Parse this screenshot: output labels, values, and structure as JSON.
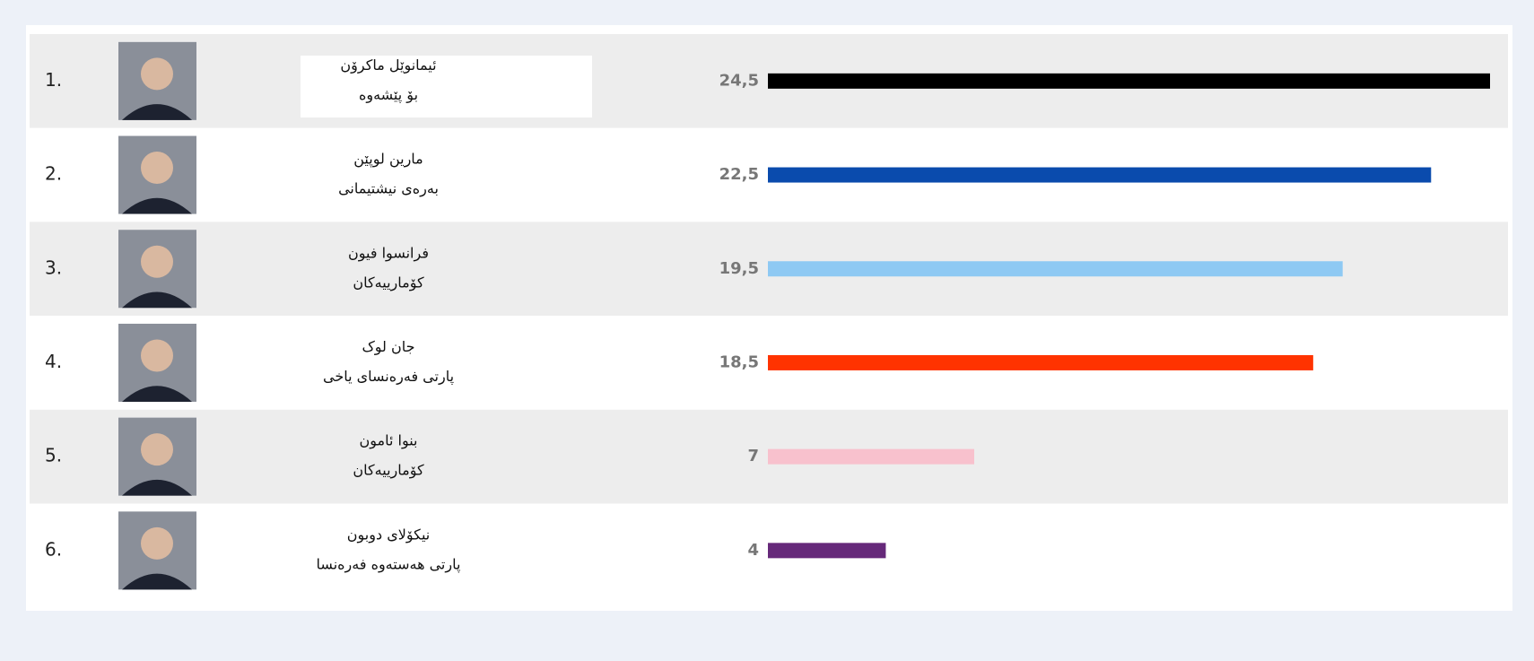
{
  "chart_data": {
    "type": "bar",
    "ranks": [
      "1.",
      "2.",
      "3.",
      "4.",
      "5.",
      "6."
    ],
    "names": [
      "ئیمانوێل ماکرۆن",
      "مارین لوپێن",
      "فرانسوا فیون",
      "جان لوک",
      "بنوا ئامون",
      "نیکۆلای دوبون"
    ],
    "parties": [
      "بۆ پێشەوە",
      "بەرەی نیشتیمانی",
      "کۆمارییەکان",
      "پارتی فەرەنسای یاخی",
      "کۆمارییەکان",
      "پارتی هەستەوە فەرەنسا"
    ],
    "values": [
      24.5,
      22.5,
      19.5,
      18.5,
      7,
      4
    ],
    "value_labels": [
      "24,5",
      "22,5",
      "19,5",
      "18,5",
      "7",
      "4"
    ],
    "colors": [
      "#000000",
      "#0a4bad",
      "#8ec9f3",
      "#ff3300",
      "#f8c1cd",
      "#66297a"
    ]
  }
}
